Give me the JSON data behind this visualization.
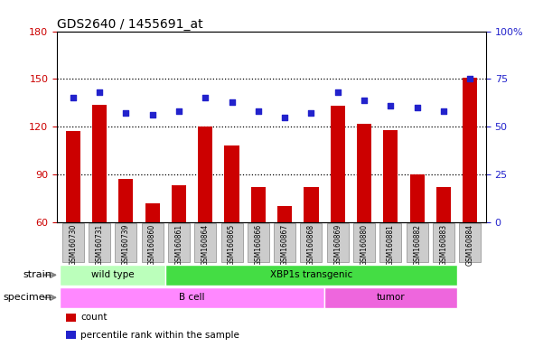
{
  "title": "GDS2640 / 1455691_at",
  "samples": [
    "GSM160730",
    "GSM160731",
    "GSM160739",
    "GSM160860",
    "GSM160861",
    "GSM160864",
    "GSM160865",
    "GSM160866",
    "GSM160867",
    "GSM160868",
    "GSM160869",
    "GSM160880",
    "GSM160881",
    "GSM160882",
    "GSM160883",
    "GSM160884"
  ],
  "counts": [
    117,
    134,
    87,
    72,
    83,
    120,
    108,
    82,
    70,
    82,
    133,
    122,
    118,
    90,
    82,
    151
  ],
  "percentiles": [
    65,
    68,
    57,
    56,
    58,
    65,
    63,
    58,
    55,
    57,
    68,
    64,
    61,
    60,
    58,
    75
  ],
  "ylim_left": [
    60,
    180
  ],
  "ylim_right": [
    0,
    100
  ],
  "yticks_left": [
    60,
    90,
    120,
    150,
    180
  ],
  "yticks_right": [
    0,
    25,
    50,
    75,
    100
  ],
  "ytick_labels_right": [
    "0",
    "25",
    "50",
    "75",
    "100%"
  ],
  "hlines": [
    90,
    120,
    150
  ],
  "bar_color": "#cc0000",
  "dot_color": "#2222cc",
  "strain_groups": [
    {
      "label": "wild type",
      "start": 0,
      "end": 4,
      "color": "#bbffbb"
    },
    {
      "label": "XBP1s transgenic",
      "start": 4,
      "end": 15,
      "color": "#44dd44"
    }
  ],
  "specimen_groups": [
    {
      "label": "B cell",
      "start": 0,
      "end": 10,
      "color": "#ff88ff"
    },
    {
      "label": "tumor",
      "start": 10,
      "end": 15,
      "color": "#ee66dd"
    }
  ],
  "legend_items": [
    {
      "color": "#cc0000",
      "label": "count"
    },
    {
      "color": "#2222cc",
      "label": "percentile rank within the sample"
    }
  ],
  "bar_width": 0.55,
  "tick_box_color": "#cccccc",
  "tick_box_edge": "#999999"
}
